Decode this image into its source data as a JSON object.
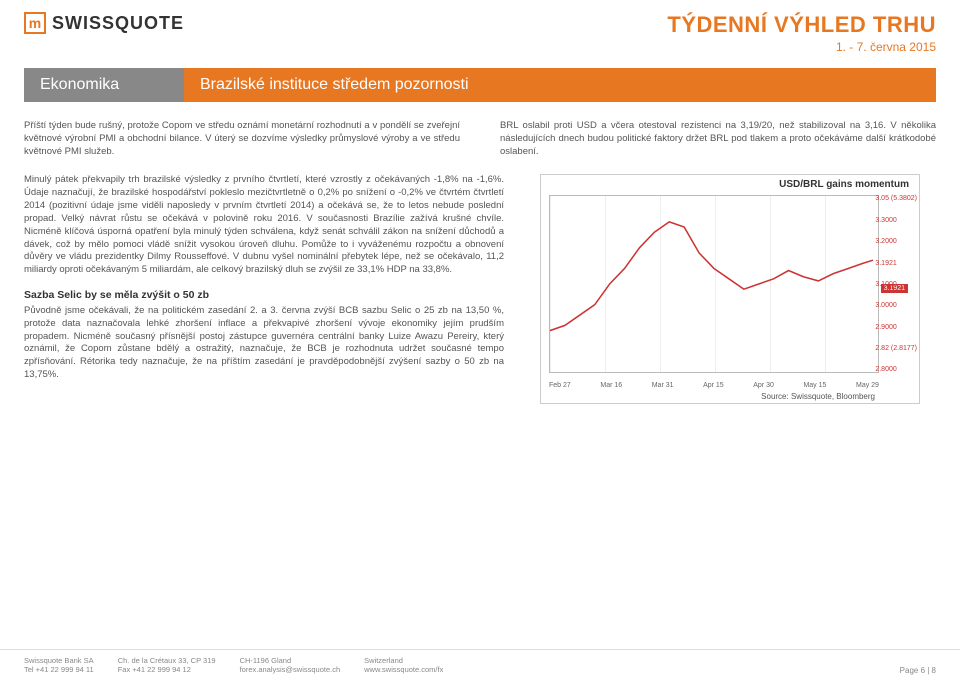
{
  "header": {
    "logo_text": "SWISSQUOTE",
    "main_title": "TÝDENNÍ VÝHLED TRHU",
    "date_line": "1. - 7. června 2015"
  },
  "section": {
    "label": "Ekonomika",
    "title": "Brazilské instituce středem pozornosti"
  },
  "intro_left": "Příští týden bude rušný, protože Copom ve středu oznámí monetární rozhodnutí a v pondělí se zveřejní květnové výrobní PMI a obchodní bilance. V úterý se dozvíme výsledky průmyslové výroby a ve středu květnové PMI služeb.",
  "intro_right": "BRL oslabil proti USD a včera otestoval rezistenci na 3,19/20, než stabilizoval na 3,16. V několika následujících dnech budou politické faktory držet BRL pod tlakem a proto očekáváme další krátkodobé oslabení.",
  "body1": "Minulý pátek překvapily trh brazilské výsledky z prvního čtvrtletí, které vzrostly z očekávaných -1,8% na -1,6%. Údaje naznačují, že brazilské hospodářství pokleslo mezičtvrtletně o 0,2% po snížení o -0,2% ve čtvrtém čtvrtletí 2014 (pozitivní údaje jsme viděli naposledy v prvním čtvrtletí 2014) a očekává se, že to letos nebude poslední propad. Velký návrat růstu se očekává v polovině roku 2016. V současnosti Brazílie zažívá krušné chvíle. Nicméně klíčová úsporná opatření byla minulý týden schválena, když senát schválil zákon na snížení důchodů a dávek, což by mělo pomoci vládě snížit vysokou úroveň dluhu. Pomůže to i vyváženému rozpočtu a obnovení důvěry ve vládu prezidentky Dilmy Rousseffové. V dubnu vyšel nominální přebytek lépe, než se očekávalo, 11,2 miliardy oproti očekávaným 5 miliardám, ale celkový brazilský dluh se zvýšil ze 33,1% HDP na 33,8%.",
  "subhead": "Sazba Selic by se měla zvýšit o 50 zb",
  "body2": "Původně jsme očekávali, že na politickém zasedání 2. a 3. června zvýší BCB sazbu Selic o 25 zb na 13,50 %, protože data naznačovala lehké zhoršení inflace a překvapivé zhoršení vývoje ekonomiky jejím prudším propadem. Nicméně současný přísnější postoj zástupce guvernéra centrální banky Luize Awazu Pereiry, který oznámil, že Copom zůstane bdělý a ostražitý, naznačuje, že BCB je rozhodnuta udržet současné tempo zpřísňování. Rétorika tedy naznačuje, že na příštím zasedání je pravděpodobnější zvýšení sazby o 50 zb na 13,75%.",
  "chart": {
    "title": "USD/BRL gains momentum",
    "source": "Source: Swissquote, Bloomberg",
    "line_color": "#cc3333",
    "grid_color": "#eeeeee",
    "y_ticks": [
      "3.05 (5.3802)",
      "3.3000",
      "3.2000",
      "3.1921",
      "3.1000",
      "3.0000",
      "2.9000",
      "2.82 (2.8177)",
      "2.8000"
    ],
    "x_ticks": [
      "Feb 27",
      "Mar 16",
      "Mar 31",
      "Apr 15",
      "Apr 30",
      "May 15",
      "May 29"
    ],
    "last_value": "3.1921",
    "points": [
      [
        0,
        130
      ],
      [
        15,
        125
      ],
      [
        30,
        115
      ],
      [
        45,
        105
      ],
      [
        60,
        85
      ],
      [
        75,
        70
      ],
      [
        90,
        50
      ],
      [
        105,
        35
      ],
      [
        120,
        25
      ],
      [
        135,
        30
      ],
      [
        150,
        55
      ],
      [
        165,
        70
      ],
      [
        180,
        80
      ],
      [
        195,
        90
      ],
      [
        210,
        85
      ],
      [
        225,
        80
      ],
      [
        240,
        72
      ],
      [
        255,
        78
      ],
      [
        270,
        82
      ],
      [
        285,
        75
      ],
      [
        300,
        70
      ],
      [
        315,
        65
      ],
      [
        325,
        62
      ]
    ]
  },
  "footer": {
    "col1_l1": "Swissquote Bank SA",
    "col1_l2": "Tel +41 22 999 94 11",
    "col2_l1": "Ch. de la Crétaux 33, CP 319",
    "col2_l2": "Fax +41 22 999 94 12",
    "col3_l1": "CH-1196 Gland",
    "col3_l2": "forex.analysis@swissquote.ch",
    "col4_l1": "Switzerland",
    "col4_l2": "www.swissquote.com/fx",
    "page": "Page 6 | 8"
  }
}
